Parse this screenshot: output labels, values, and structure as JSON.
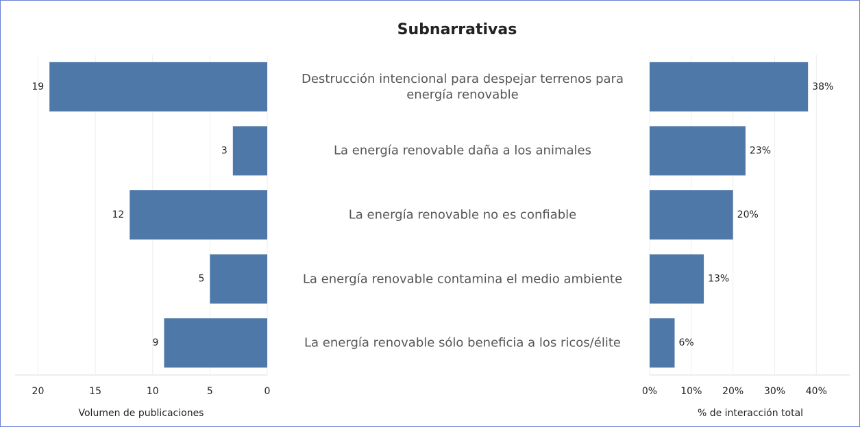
{
  "chart_data": [
    {
      "type": "bar",
      "title": "Subnarrativas",
      "categories": [
        "Destrucción intencional para despejar terrenos para energía renovable",
        "La energía renovable daña a los animales",
        "La energía renovable no es confiable",
        "La energía renovable contamina el medio ambiente",
        "La energía renovable sólo beneficia a los ricos/élite"
      ],
      "values": [
        19,
        3,
        12,
        5,
        9
      ],
      "color": "#4e78a8",
      "xlabel": "Volumen de publicaciones",
      "xlim": [
        0,
        22
      ],
      "xticks": [
        0,
        5,
        10,
        15,
        20
      ],
      "reversed": true,
      "grid": true
    },
    {
      "type": "bar",
      "values": [
        38,
        23,
        20,
        13,
        6
      ],
      "value_labels": [
        "38%",
        "23%",
        "20%",
        "13%",
        "6%"
      ],
      "color": "#4e78a8",
      "xlabel": "% de interacción total",
      "xlim": [
        0,
        48
      ],
      "xticks": [
        {
          "value": 0,
          "label": "0%"
        },
        {
          "value": 10,
          "label": "10%"
        },
        {
          "value": 20,
          "label": "20%"
        },
        {
          "value": 30,
          "label": "30%"
        },
        {
          "value": 40,
          "label": "40%"
        }
      ],
      "grid": true
    }
  ]
}
